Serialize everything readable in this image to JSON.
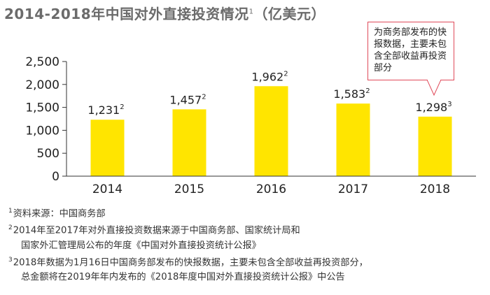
{
  "title": "2014-2018年中国对外直接投资情况",
  "title_note": "1",
  "title_unit": "（亿美元）",
  "callout": "为商务部发布的快报数据，主要未包含全部收益再投资部分",
  "colors": {
    "bar": "#FFE500",
    "axis": "#333333",
    "callout_border": "#E04A5A",
    "title": "#6B6B6B"
  },
  "chart_data": {
    "type": "bar",
    "title": "2014-2018年中国对外直接投资情况（亿美元）",
    "categories": [
      "2014",
      "2015",
      "2016",
      "2017",
      "2018"
    ],
    "values": [
      1231,
      1457,
      1962,
      1583,
      1298
    ],
    "value_labels": [
      "1,231",
      "1,457",
      "1,962",
      "1,583",
      "1,298"
    ],
    "value_notes": [
      "2",
      "2",
      "2",
      "2",
      "3"
    ],
    "yticks": [
      "2,500",
      "2,000",
      "1,500",
      "1,000",
      "500",
      "0"
    ],
    "ytick_values": [
      2500,
      2000,
      1500,
      1000,
      500,
      0
    ],
    "ylim": [
      0,
      2500
    ],
    "grid": false,
    "legend": "none"
  },
  "notes": [
    {
      "num": "1",
      "text": "资料来源：中国商务部"
    },
    {
      "num": "2",
      "text": "2014年至2017年对外直接投资数据来源于中国商务部、国家统计局和"
    },
    {
      "num": "",
      "text": "国家外汇管理局公布的年度《中国对外直接投资统计公报》"
    },
    {
      "num": "3",
      "text": "2018年数据为1月16日中国商务部发布的快报数据，主要未包含全部收益再投资部分，"
    },
    {
      "num": "",
      "text": "总金额将在2019年年内发布的《2018年度中国对外直接投资统计公报》中公告"
    }
  ]
}
